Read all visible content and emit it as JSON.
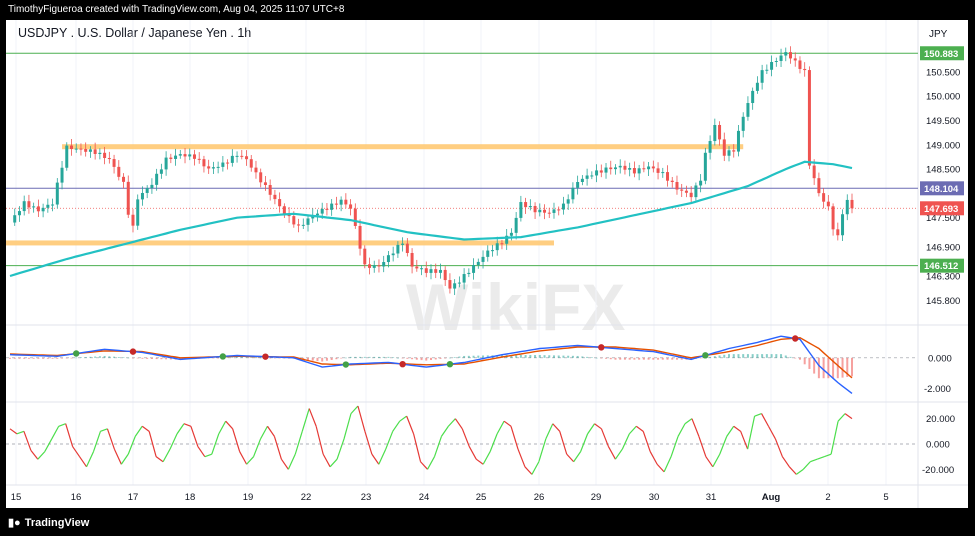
{
  "caption": "TimothyFigueroa created with TradingView.com, Aug 04, 2025 11:07 UTC+8",
  "footer_brand": "TradingView",
  "watermark": "WikiFX",
  "colors": {
    "up": "#26a69a",
    "down": "#ef5350",
    "ma": "#22c1c3",
    "zone": "#ffc56b",
    "green_line": "#4caf50",
    "purple_line": "#6c6cb3",
    "macd": "#2962ff",
    "signal": "#e65100",
    "rsi_up": "#4cde4c",
    "rsi_down": "#e53935"
  },
  "chart_data": {
    "type": "line",
    "title": "USDJPY . U.S. Dollar / Japanese Yen . 1h",
    "currency": "JPY",
    "x_labels": [
      "15",
      "16",
      "17",
      "18",
      "19",
      "22",
      "23",
      "24",
      "25",
      "26",
      "29",
      "30",
      "31",
      "Aug",
      "2",
      "5"
    ],
    "y_ticks": [
      "150.500",
      "150.000",
      "149.500",
      "149.000",
      "148.500",
      "147.500",
      "146.900",
      "146.300",
      "145.800"
    ],
    "price_labels": {
      "resistance": "150.883",
      "level_mid": "148.104",
      "last": "147.693",
      "support": "146.512"
    },
    "levels": {
      "resistance": 150.883,
      "level_mid": 148.104,
      "last": 147.693,
      "support": 146.512,
      "zone_upper": 148.96,
      "zone_lower": 146.98
    },
    "price_path": [
      [
        0,
        147.4
      ],
      [
        3,
        147.8
      ],
      [
        6,
        147.65
      ],
      [
        9,
        147.8
      ],
      [
        12,
        148.95
      ],
      [
        15,
        148.9
      ],
      [
        18,
        148.85
      ],
      [
        21,
        148.7
      ],
      [
        24,
        148.2
      ],
      [
        25,
        147.6
      ],
      [
        26,
        147.3
      ],
      [
        27,
        147.9
      ],
      [
        30,
        148.2
      ],
      [
        33,
        148.7
      ],
      [
        36,
        148.8
      ],
      [
        39,
        148.75
      ],
      [
        42,
        148.5
      ],
      [
        45,
        148.6
      ],
      [
        48,
        148.8
      ],
      [
        50,
        148.7
      ],
      [
        52,
        148.4
      ],
      [
        55,
        148.0
      ],
      [
        58,
        147.6
      ],
      [
        61,
        147.3
      ],
      [
        64,
        147.55
      ],
      [
        67,
        147.7
      ],
      [
        70,
        147.85
      ],
      [
        72,
        147.7
      ],
      [
        73,
        147.3
      ],
      [
        75,
        146.5
      ],
      [
        78,
        146.5
      ],
      [
        81,
        146.8
      ],
      [
        83,
        147.0
      ],
      [
        85,
        146.5
      ],
      [
        88,
        146.4
      ],
      [
        91,
        146.4
      ],
      [
        93,
        146.05
      ],
      [
        95,
        146.2
      ],
      [
        98,
        146.5
      ],
      [
        101,
        146.8
      ],
      [
        104,
        147.0
      ],
      [
        106,
        147.2
      ],
      [
        108,
        147.8
      ],
      [
        111,
        147.65
      ],
      [
        114,
        147.6
      ],
      [
        117,
        147.75
      ],
      [
        120,
        148.25
      ],
      [
        123,
        148.4
      ],
      [
        126,
        148.5
      ],
      [
        129,
        148.55
      ],
      [
        132,
        148.45
      ],
      [
        135,
        148.55
      ],
      [
        138,
        148.4
      ],
      [
        141,
        148.1
      ],
      [
        144,
        147.95
      ],
      [
        146,
        148.3
      ],
      [
        147,
        148.8
      ],
      [
        149,
        149.4
      ],
      [
        151,
        148.8
      ],
      [
        153,
        148.9
      ],
      [
        155,
        149.6
      ],
      [
        157,
        150.1
      ],
      [
        159,
        150.5
      ],
      [
        162,
        150.75
      ],
      [
        164,
        150.9
      ],
      [
        166,
        150.7
      ],
      [
        168,
        150.5
      ],
      [
        169,
        148.6
      ],
      [
        171,
        148.0
      ],
      [
        173,
        147.7
      ],
      [
        174,
        147.3
      ],
      [
        175,
        147.1
      ],
      [
        176,
        147.6
      ],
      [
        177,
        147.85
      ],
      [
        178,
        147.69
      ]
    ],
    "ma_path": [
      [
        0,
        146.3
      ],
      [
        12,
        146.65
      ],
      [
        24,
        146.95
      ],
      [
        36,
        147.25
      ],
      [
        48,
        147.5
      ],
      [
        60,
        147.58
      ],
      [
        72,
        147.45
      ],
      [
        84,
        147.2
      ],
      [
        96,
        147.05
      ],
      [
        108,
        147.1
      ],
      [
        120,
        147.3
      ],
      [
        132,
        147.55
      ],
      [
        144,
        147.8
      ],
      [
        156,
        148.15
      ],
      [
        164,
        148.5
      ],
      [
        168,
        148.65
      ],
      [
        174,
        148.6
      ],
      [
        178,
        148.52
      ]
    ],
    "macd": {
      "zero_label": "0.000",
      "low_label": "-2.000",
      "macd_path": [
        [
          0,
          0.2
        ],
        [
          10,
          0.1
        ],
        [
          20,
          0.55
        ],
        [
          28,
          0.35
        ],
        [
          36,
          -0.1
        ],
        [
          48,
          0.15
        ],
        [
          60,
          0.0
        ],
        [
          66,
          -0.6
        ],
        [
          72,
          -0.4
        ],
        [
          80,
          -0.3
        ],
        [
          88,
          -0.6
        ],
        [
          96,
          -0.3
        ],
        [
          104,
          0.2
        ],
        [
          112,
          0.6
        ],
        [
          120,
          0.8
        ],
        [
          128,
          0.6
        ],
        [
          136,
          0.4
        ],
        [
          144,
          -0.1
        ],
        [
          152,
          0.6
        ],
        [
          158,
          1.0
        ],
        [
          163,
          1.4
        ],
        [
          167,
          1.2
        ],
        [
          171,
          -0.5
        ],
        [
          175,
          -1.6
        ],
        [
          178,
          -2.3
        ]
      ],
      "signal_path": [
        [
          0,
          0.25
        ],
        [
          10,
          0.15
        ],
        [
          20,
          0.45
        ],
        [
          28,
          0.4
        ],
        [
          36,
          0.0
        ],
        [
          48,
          0.1
        ],
        [
          60,
          0.05
        ],
        [
          66,
          -0.4
        ],
        [
          72,
          -0.45
        ],
        [
          80,
          -0.35
        ],
        [
          88,
          -0.45
        ],
        [
          96,
          -0.4
        ],
        [
          104,
          0.05
        ],
        [
          112,
          0.45
        ],
        [
          120,
          0.7
        ],
        [
          128,
          0.7
        ],
        [
          136,
          0.5
        ],
        [
          144,
          0.0
        ],
        [
          152,
          0.4
        ],
        [
          158,
          0.8
        ],
        [
          163,
          1.2
        ],
        [
          167,
          1.3
        ],
        [
          171,
          0.6
        ],
        [
          175,
          -0.5
        ],
        [
          178,
          -1.3
        ]
      ]
    },
    "rsi": {
      "upper_label": "20.000",
      "mid_label": "0.000",
      "lower_label": "-20.000",
      "series": [
        12,
        8,
        10,
        -5,
        -12,
        -6,
        4,
        14,
        16,
        -2,
        -10,
        -18,
        -6,
        10,
        12,
        -4,
        -16,
        -8,
        6,
        14,
        10,
        -10,
        -14,
        -4,
        8,
        16,
        14,
        -2,
        -10,
        -8,
        8,
        18,
        12,
        -6,
        -16,
        -10,
        4,
        14,
        6,
        -12,
        -20,
        -8,
        10,
        28,
        14,
        -8,
        -18,
        -12,
        4,
        24,
        30,
        10,
        -8,
        -16,
        -4,
        10,
        18,
        22,
        8,
        -14,
        -20,
        -10,
        6,
        14,
        20,
        12,
        -2,
        -12,
        -16,
        -6,
        8,
        18,
        14,
        -4,
        -18,
        -24,
        -14,
        4,
        16,
        10,
        -8,
        -14,
        -6,
        8,
        16,
        12,
        -2,
        -12,
        -4,
        8,
        14,
        10,
        -6,
        -16,
        -22,
        -10,
        6,
        16,
        20,
        6,
        -10,
        -18,
        -8,
        6,
        14,
        10,
        -4,
        22,
        24,
        14,
        4,
        -10,
        -18,
        -24,
        -20,
        -14,
        -12,
        -10,
        -8,
        18,
        24,
        20
      ]
    }
  }
}
